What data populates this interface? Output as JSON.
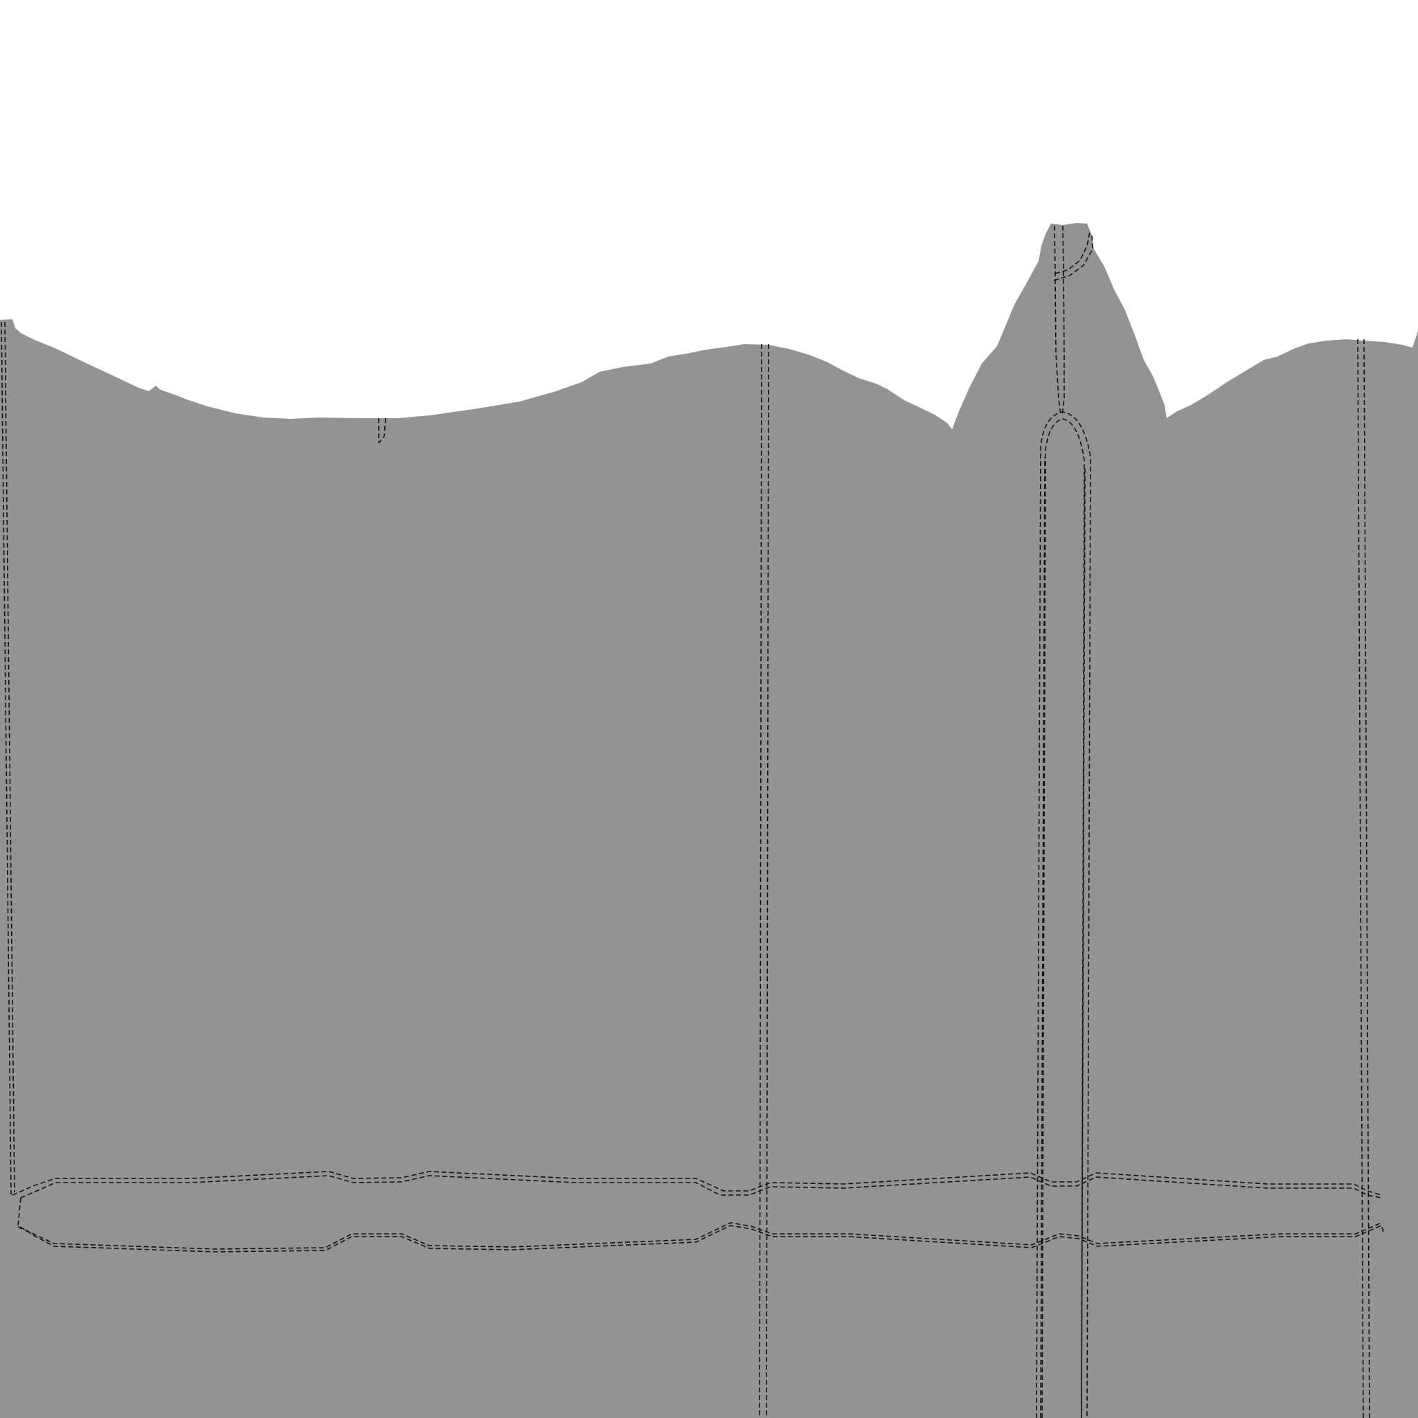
{
  "map": {
    "background_color": "#ffffff",
    "fill_color": "#939393",
    "line_color": "#111111",
    "line_style": "dashed-double",
    "labels": []
  }
}
